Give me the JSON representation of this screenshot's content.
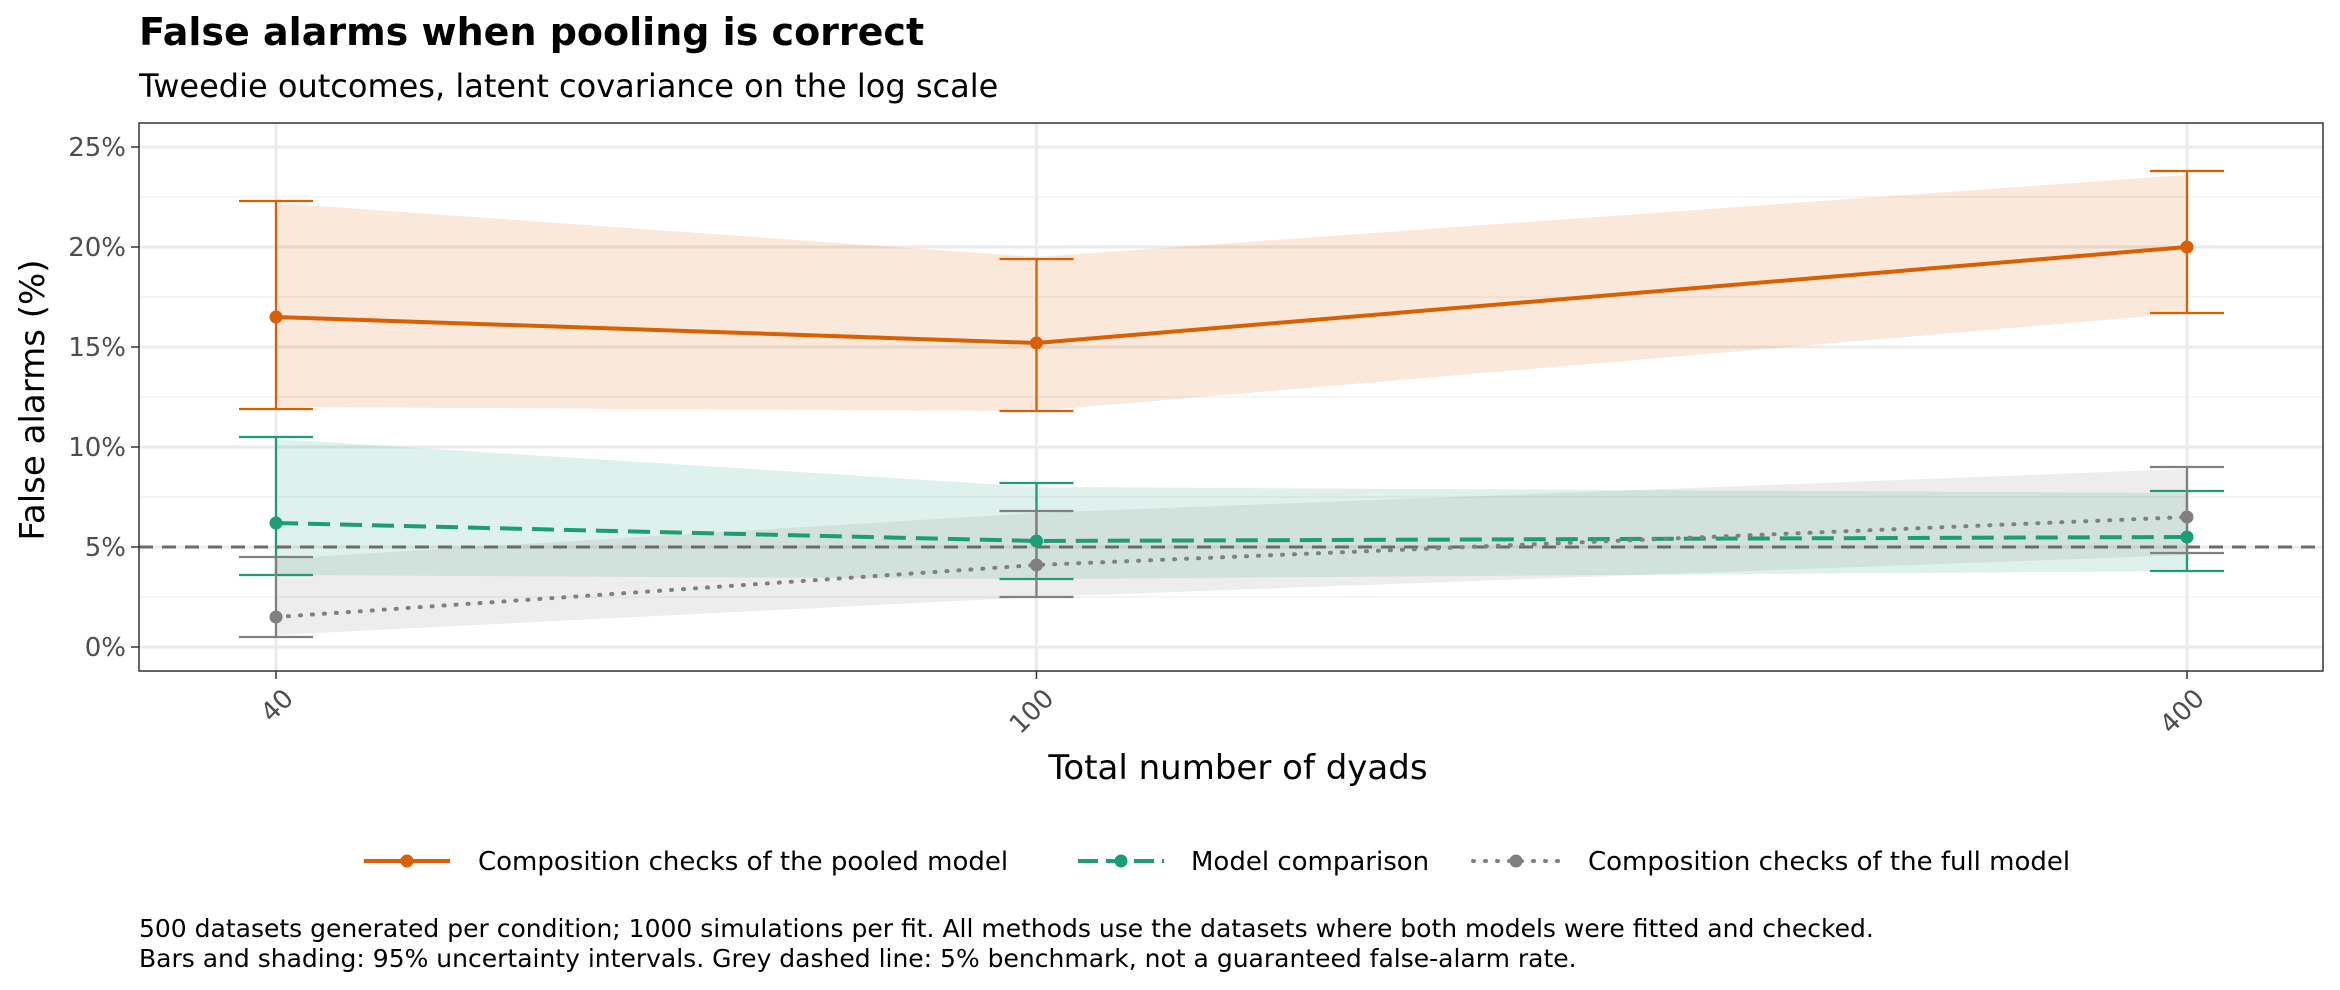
{
  "chart_data": {
    "type": "line",
    "title": "False alarms when pooling is correct",
    "subtitle": "Tweedie outcomes, latent covariance on the log scale",
    "xlabel": "Total number of dyads",
    "ylabel": "False alarms (%)",
    "x": [
      40,
      100,
      400
    ],
    "x_tick_labels": [
      "40",
      "100",
      "400"
    ],
    "x_scale": "log",
    "ylim": [
      -1.2,
      26.2
    ],
    "y_ticks": [
      0,
      5,
      10,
      15,
      20,
      25
    ],
    "y_tick_labels": [
      "0%",
      "5%",
      "10%",
      "15%",
      "20%",
      "25%"
    ],
    "grid": true,
    "legend_position": "bottom",
    "reference_line": {
      "y": 5,
      "style": "dashed",
      "color": "#6b6b6b"
    },
    "series": [
      {
        "name": "Composition checks of the pooled model",
        "color": "#D95F02",
        "line_style": "solid",
        "values": [
          16.5,
          15.2,
          20.0
        ],
        "lower": [
          11.9,
          11.8,
          16.7
        ],
        "upper": [
          22.3,
          19.4,
          23.8
        ],
        "band_lower": [
          12.0,
          11.8,
          16.7
        ],
        "band_upper": [
          22.2,
          19.5,
          23.6
        ]
      },
      {
        "name": "Model comparison",
        "color": "#1B9E77",
        "line_style": "dashed",
        "values": [
          6.2,
          5.3,
          5.5
        ],
        "lower": [
          3.6,
          3.4,
          3.8
        ],
        "upper": [
          10.5,
          8.2,
          7.8
        ],
        "band_lower": [
          3.6,
          3.4,
          3.8
        ],
        "band_upper": [
          10.4,
          8.0,
          7.7
        ]
      },
      {
        "name": "Composition checks of the full model",
        "color": "#808080",
        "line_style": "dotted",
        "values": [
          1.5,
          4.1,
          6.5
        ],
        "lower": [
          0.5,
          2.5,
          4.7
        ],
        "upper": [
          4.5,
          6.8,
          9.0
        ],
        "band_lower": [
          0.6,
          2.5,
          4.6
        ],
        "band_upper": [
          4.4,
          6.7,
          8.9
        ]
      }
    ],
    "caption": [
      "500 datasets generated per condition; 1000 simulations per fit. All methods use the datasets where both models were fitted and checked.",
      "Bars and shading: 95% uncertainty intervals. Grey dashed line: 5% benchmark, not a guaranteed false-alarm rate."
    ]
  }
}
